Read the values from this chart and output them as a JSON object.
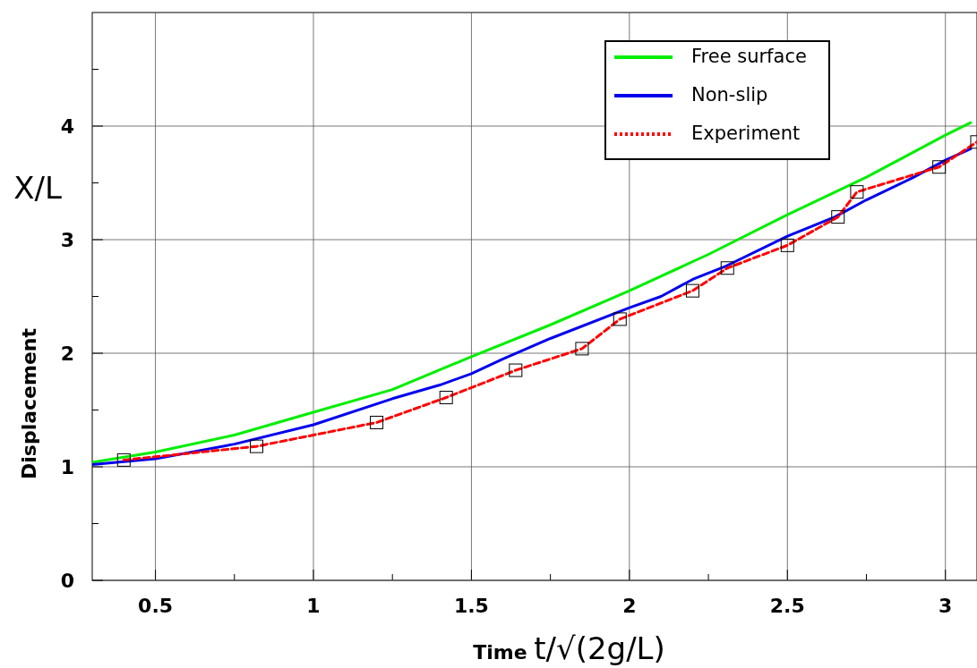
{
  "chart_data": {
    "type": "line",
    "xlabel": "Time t/√(2g/L)",
    "ylabel": "Displacement",
    "annotations": [
      "X/L"
    ],
    "xlim": [
      0.3,
      3.1
    ],
    "ylim": [
      0,
      5
    ],
    "xticks": [
      0.5,
      {
        "value": 0.75,
        "label": null
      },
      1,
      {
        "value": 1.25,
        "label": null
      },
      1.5,
      {
        "value": 1.75,
        "label": null
      },
      2,
      {
        "value": 2.25,
        "label": null
      },
      2.5,
      {
        "value": 2.75,
        "label": null
      },
      3
    ],
    "yticks": [
      0,
      {
        "value": 0.5,
        "label": null
      },
      1,
      {
        "value": 1.5,
        "label": null
      },
      2,
      {
        "value": 2.5,
        "label": null
      },
      3,
      {
        "value": 3.5,
        "label": null
      },
      4,
      {
        "value": 4.5,
        "label": null
      }
    ],
    "grid": true,
    "legend": "top right",
    "series": [
      {
        "name": "Free surface",
        "color": "#00ee00",
        "x": [
          0.3,
          0.5,
          0.75,
          1.0,
          1.25,
          1.5,
          1.75,
          2.0,
          2.25,
          2.5,
          2.75,
          3.0,
          3.08
        ],
        "values": [
          1.04,
          1.13,
          1.28,
          1.48,
          1.68,
          1.97,
          2.25,
          2.55,
          2.87,
          3.22,
          3.55,
          3.92,
          4.03
        ]
      },
      {
        "name": "Non-slip",
        "color": "#0000ee",
        "x": [
          0.3,
          0.5,
          0.75,
          1.0,
          1.25,
          1.4,
          1.5,
          1.6,
          1.75,
          2.0,
          2.1,
          2.2,
          2.3,
          2.5,
          2.65,
          2.75,
          2.9,
          3.0,
          3.08
        ],
        "values": [
          1.02,
          1.07,
          1.2,
          1.37,
          1.6,
          1.72,
          1.82,
          1.95,
          2.13,
          2.4,
          2.5,
          2.65,
          2.76,
          3.03,
          3.2,
          3.35,
          3.55,
          3.7,
          3.8
        ]
      },
      {
        "name": "Experiment",
        "color": "#ff0000",
        "line_style": "dashed",
        "marker": "square",
        "x": [
          0.4,
          0.82,
          1.2,
          1.42,
          1.64,
          1.85,
          1.97,
          2.2,
          2.31,
          2.5,
          2.66,
          2.72,
          2.98,
          3.1
        ],
        "values": [
          1.06,
          1.18,
          1.39,
          1.61,
          1.85,
          2.04,
          2.3,
          2.55,
          2.75,
          2.95,
          3.2,
          3.42,
          3.64,
          3.86
        ]
      }
    ]
  }
}
